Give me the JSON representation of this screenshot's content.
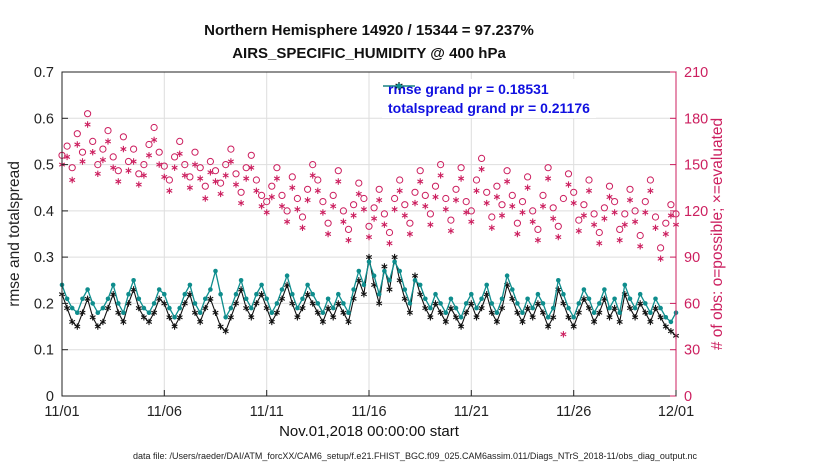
{
  "title": {
    "line1": "Northern Hemisphere 14920 / 15344 = 97.237%",
    "line2": "AIRS_SPECIFIC_HUMIDITY @ 400 hPa"
  },
  "caption": "data file: /Users/raeder/DAI/ATM_forcXX/CAM6_setup/f.e21.FHIST_BGC.f09_025.CAM6assim.011/Diags_NTrS_2018-11/obs_diag_output.nc",
  "colors": {
    "rmse": "#111111",
    "totalspread": "#0e8d8d",
    "obs": "#cc1f5f",
    "legend_text": "#1010e0",
    "grid": "#dedede",
    "axis": "#222222"
  },
  "legend": [
    {
      "label": "rmse grand pr = 0.18531",
      "color": "#111111",
      "marker": "asterisk"
    },
    {
      "label": "totalspread grand pr = 0.21176",
      "color": "#0e8d8d",
      "marker": "dot"
    }
  ],
  "axes": {
    "left": {
      "label": "rmse and totalspread",
      "lim": [
        0,
        0.7
      ],
      "ticks": [
        0,
        0.1,
        0.2,
        0.3,
        0.4,
        0.5,
        0.6,
        0.7
      ],
      "tick_labels": [
        "0",
        "0.1",
        "0.2",
        "0.3",
        "0.4",
        "0.5",
        "0.6",
        "0.7"
      ]
    },
    "right": {
      "label": "# of obs: o=possible; ×=evaluated",
      "lim": [
        0,
        210
      ],
      "ticks": [
        0,
        30,
        60,
        90,
        120,
        150,
        180,
        210
      ],
      "tick_labels": [
        "0",
        "30",
        "60",
        "90",
        "120",
        "150",
        "180",
        "210"
      ]
    },
    "x": {
      "label": "Nov.01,2018 00:00:00 start",
      "lim_days": [
        0,
        30
      ],
      "tick_days": [
        0,
        5,
        10,
        15,
        20,
        25,
        30
      ],
      "tick_labels": [
        "11/01",
        "11/06",
        "11/11",
        "11/16",
        "11/21",
        "11/26",
        "12/01"
      ]
    }
  },
  "chart_data": {
    "type": "line+scatter",
    "x_start_day": 0,
    "x_step_days": 0.25,
    "xlim_days": [
      0,
      30
    ],
    "left_ylim": [
      0,
      0.7
    ],
    "right_ylim": [
      0,
      210
    ],
    "grid": true,
    "series": [
      {
        "name": "possible",
        "axis": "right",
        "marker": "circle-open",
        "line": false,
        "color": "#cc1f5f",
        "values": [
          156,
          162,
          148,
          170,
          158,
          183,
          165,
          150,
          160,
          172,
          155,
          146,
          168,
          152,
          160,
          144,
          150,
          163,
          174,
          158,
          149,
          140,
          155,
          165,
          150,
          142,
          158,
          148,
          136,
          152,
          146,
          138,
          150,
          160,
          144,
          132,
          148,
          156,
          140,
          130,
          126,
          136,
          148,
          130,
          120,
          142,
          128,
          116,
          134,
          150,
          140,
          126,
          112,
          130,
          146,
          120,
          108,
          124,
          138,
          128,
          110,
          122,
          134,
          118,
          106,
          128,
          140,
          124,
          112,
          132,
          146,
          130,
          118,
          136,
          150,
          128,
          114,
          134,
          148,
          126,
          120,
          140,
          154,
          132,
          116,
          136,
          124,
          146,
          130,
          112,
          126,
          142,
          120,
          108,
          130,
          148,
          122,
          110,
          128,
          144,
          132,
          114,
          124,
          140,
          118,
          106,
          122,
          136,
          126,
          108,
          118,
          134,
          120,
          104,
          126,
          140,
          116,
          96,
          112,
          124,
          118
        ]
      },
      {
        "name": "evaluated",
        "axis": "right",
        "marker": "asterisk",
        "line": false,
        "color": "#cc1f5f",
        "values": [
          150,
          155,
          140,
          163,
          152,
          176,
          158,
          144,
          153,
          165,
          148,
          139,
          160,
          146,
          152,
          137,
          143,
          156,
          166,
          150,
          142,
          133,
          148,
          157,
          143,
          135,
          150,
          141,
          128,
          145,
          139,
          131,
          143,
          152,
          137,
          125,
          141,
          148,
          133,
          123,
          119,
          129,
          141,
          123,
          113,
          135,
          121,
          109,
          127,
          143,
          133,
          119,
          105,
          123,
          139,
          113,
          101,
          117,
          131,
          121,
          103,
          115,
          127,
          111,
          99,
          121,
          133,
          117,
          105,
          125,
          139,
          123,
          111,
          129,
          143,
          121,
          107,
          127,
          141,
          119,
          113,
          133,
          147,
          125,
          109,
          129,
          117,
          139,
          123,
          105,
          119,
          135,
          113,
          101,
          123,
          141,
          115,
          103,
          40,
          137,
          125,
          107,
          117,
          133,
          111,
          99,
          115,
          129,
          119,
          101,
          111,
          127,
          113,
          97,
          119,
          133,
          109,
          89,
          105,
          117,
          111
        ]
      },
      {
        "name": "rmse",
        "axis": "left",
        "marker": "asterisk",
        "line": true,
        "color": "#111111",
        "values": [
          0.22,
          0.19,
          0.16,
          0.15,
          0.18,
          0.21,
          0.17,
          0.15,
          0.16,
          0.19,
          0.22,
          0.18,
          0.16,
          0.2,
          0.23,
          0.19,
          0.17,
          0.16,
          0.18,
          0.21,
          0.2,
          0.17,
          0.15,
          0.17,
          0.2,
          0.22,
          0.18,
          0.16,
          0.19,
          0.21,
          0.18,
          0.15,
          0.14,
          0.17,
          0.2,
          0.23,
          0.19,
          0.17,
          0.2,
          0.22,
          0.19,
          0.16,
          0.18,
          0.21,
          0.24,
          0.2,
          0.17,
          0.19,
          0.22,
          0.2,
          0.18,
          0.16,
          0.19,
          0.17,
          0.2,
          0.18,
          0.16,
          0.21,
          0.25,
          0.22,
          0.3,
          0.24,
          0.2,
          0.28,
          0.23,
          0.3,
          0.25,
          0.21,
          0.18,
          0.26,
          0.22,
          0.19,
          0.17,
          0.2,
          0.18,
          0.16,
          0.19,
          0.17,
          0.15,
          0.18,
          0.2,
          0.17,
          0.19,
          0.22,
          0.18,
          0.16,
          0.19,
          0.24,
          0.21,
          0.18,
          0.16,
          0.19,
          0.17,
          0.2,
          0.18,
          0.15,
          0.17,
          0.23,
          0.2,
          0.17,
          0.15,
          0.18,
          0.21,
          0.19,
          0.16,
          0.18,
          0.21,
          0.17,
          0.19,
          0.16,
          0.22,
          0.19,
          0.17,
          0.2,
          0.18,
          0.16,
          0.19,
          0.17,
          0.15,
          0.14,
          0.13
        ]
      },
      {
        "name": "totalspread",
        "axis": "left",
        "marker": "dot",
        "line": true,
        "color": "#0e8d8d",
        "values": [
          0.24,
          0.21,
          0.19,
          0.18,
          0.21,
          0.23,
          0.2,
          0.18,
          0.19,
          0.21,
          0.24,
          0.2,
          0.18,
          0.22,
          0.25,
          0.21,
          0.19,
          0.18,
          0.2,
          0.23,
          0.22,
          0.19,
          0.17,
          0.19,
          0.22,
          0.24,
          0.2,
          0.18,
          0.21,
          0.23,
          0.27,
          0.22,
          0.17,
          0.19,
          0.22,
          0.25,
          0.21,
          0.19,
          0.22,
          0.24,
          0.21,
          0.18,
          0.2,
          0.23,
          0.26,
          0.22,
          0.19,
          0.21,
          0.24,
          0.22,
          0.2,
          0.18,
          0.21,
          0.19,
          0.22,
          0.2,
          0.18,
          0.23,
          0.27,
          0.24,
          0.29,
          0.26,
          0.22,
          0.27,
          0.25,
          0.29,
          0.27,
          0.23,
          0.2,
          0.25,
          0.24,
          0.21,
          0.19,
          0.22,
          0.2,
          0.18,
          0.21,
          0.19,
          0.17,
          0.2,
          0.22,
          0.19,
          0.21,
          0.24,
          0.2,
          0.18,
          0.21,
          0.26,
          0.23,
          0.2,
          0.18,
          0.21,
          0.19,
          0.22,
          0.2,
          0.17,
          0.19,
          0.25,
          0.22,
          0.19,
          0.17,
          0.2,
          0.23,
          0.21,
          0.18,
          0.2,
          0.23,
          0.19,
          0.21,
          0.18,
          0.24,
          0.21,
          0.19,
          0.22,
          0.2,
          0.18,
          0.21,
          0.19,
          0.17,
          0.16,
          0.18
        ]
      }
    ]
  }
}
